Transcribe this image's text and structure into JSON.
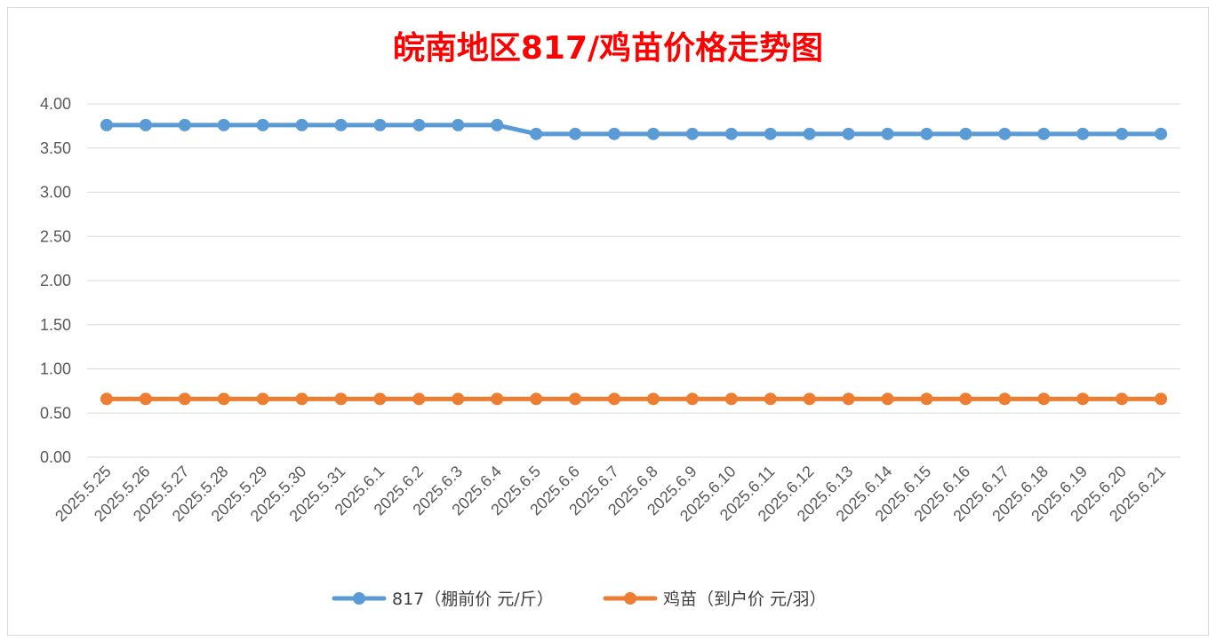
{
  "chart_data": {
    "type": "line",
    "title": "皖南地区817/鸡苗价格走势图",
    "xlabel": "",
    "ylabel": "",
    "ylim": [
      0,
      4
    ],
    "yticks": [
      "0.00",
      "0.50",
      "1.00",
      "1.50",
      "2.00",
      "2.50",
      "3.00",
      "3.50",
      "4.00"
    ],
    "grid": true,
    "legend_position": "bottom",
    "categories": [
      "2025.5.25",
      "2025.5.26",
      "2025.5.27",
      "2025.5.28",
      "2025.5.29",
      "2025.5.30",
      "2025.5.31",
      "2025.6.1",
      "2025.6.2",
      "2025.6.3",
      "2025.6.4",
      "2025.6.5",
      "2025.6.6",
      "2025.6.7",
      "2025.6.8",
      "2025.6.9",
      "2025.6.10",
      "2025.6.11",
      "2025.6.12",
      "2025.6.13",
      "2025.6.14",
      "2025.6.15",
      "2025.6.16",
      "2025.6.17",
      "2025.6.18",
      "2025.6.19",
      "2025.6.20",
      "2025.6.21"
    ],
    "series": [
      {
        "name": "817（棚前价 元/斤）",
        "color": "#5b9bd5",
        "values": [
          3.76,
          3.76,
          3.76,
          3.76,
          3.76,
          3.76,
          3.76,
          3.76,
          3.76,
          3.76,
          3.76,
          3.66,
          3.66,
          3.66,
          3.66,
          3.66,
          3.66,
          3.66,
          3.66,
          3.66,
          3.66,
          3.66,
          3.66,
          3.66,
          3.66,
          3.66,
          3.66,
          3.66
        ]
      },
      {
        "name": "鸡苗（到户价 元/羽）",
        "color": "#ed7d31",
        "values": [
          0.66,
          0.66,
          0.66,
          0.66,
          0.66,
          0.66,
          0.66,
          0.66,
          0.66,
          0.66,
          0.66,
          0.66,
          0.66,
          0.66,
          0.66,
          0.66,
          0.66,
          0.66,
          0.66,
          0.66,
          0.66,
          0.66,
          0.66,
          0.66,
          0.66,
          0.66,
          0.66,
          0.66
        ]
      }
    ]
  }
}
